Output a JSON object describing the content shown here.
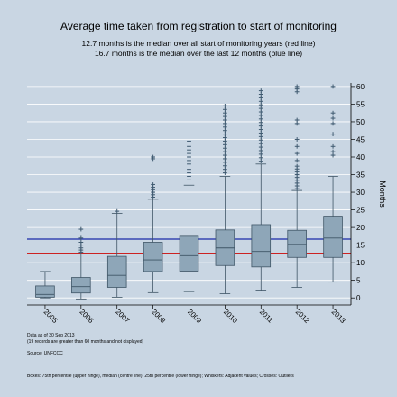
{
  "chart_data": {
    "type": "box",
    "title": "Average time taken from registration to start of monitoring",
    "subtitle_lines": [
      "12.7 months is the median over all start of monitoring years (red line)",
      "16.7 months is the median over the last 12 months (blue line)"
    ],
    "ylabel": "Months",
    "ylim": [
      -2,
      61
    ],
    "yticks": [
      0,
      5,
      10,
      15,
      20,
      25,
      30,
      35,
      40,
      45,
      50,
      55,
      60
    ],
    "ytick_labels": [
      "0",
      "5",
      "10",
      "15",
      "20",
      "25",
      "30",
      "35",
      "40",
      "45",
      "50",
      "55",
      "60"
    ],
    "ref_lines": [
      {
        "value": 12.7,
        "color": "#cc2222"
      },
      {
        "value": 16.7,
        "color": "#1a2aa8"
      }
    ],
    "categories": [
      "2005",
      "2006",
      "2007",
      "2008",
      "2009",
      "2010",
      "2011",
      "2012",
      "2013"
    ],
    "boxes": [
      {
        "whisker_low": 0,
        "q1": 0.2,
        "median": 1.0,
        "q3": 3.4,
        "whisker_high": 7.5,
        "outliers": []
      },
      {
        "whisker_low": -0.3,
        "q1": 1.4,
        "median": 3.2,
        "q3": 5.8,
        "whisker_high": 12.5,
        "outliers": [
          13.0,
          13.6,
          14.2,
          15.0,
          15.8,
          17.0,
          19.5
        ]
      },
      {
        "whisker_low": 0.2,
        "q1": 3.0,
        "median": 6.4,
        "q3": 11.8,
        "whisker_high": 24.0,
        "outliers": [
          24.6
        ]
      },
      {
        "whisker_low": 1.5,
        "q1": 7.5,
        "median": 10.8,
        "q3": 15.8,
        "whisker_high": 28.0,
        "outliers": [
          28.6,
          29.3,
          30.0,
          30.7,
          31.4,
          32.2,
          39.5,
          40.0
        ]
      },
      {
        "whisker_low": 1.8,
        "q1": 7.6,
        "median": 12.0,
        "q3": 17.5,
        "whisker_high": 32.0,
        "outliers": [
          33.5,
          34.5,
          35.5,
          36.5,
          38.0,
          39.0,
          40.0,
          41.0,
          42.0,
          43.0,
          44.5
        ]
      },
      {
        "whisker_low": 1.2,
        "q1": 9.2,
        "median": 14.2,
        "q3": 19.3,
        "whisker_high": 34.5,
        "outliers": [
          35.5,
          36.5,
          37.5,
          38.5,
          39.5,
          40.5,
          41.5,
          42.5,
          43.5,
          44.5,
          45.5,
          46.5,
          47.5,
          48.5,
          49.5,
          50.5,
          51.5,
          52.5,
          53.5,
          54.5
        ]
      },
      {
        "whisker_low": 2.2,
        "q1": 8.8,
        "median": 13.2,
        "q3": 20.8,
        "whisker_high": 38.0,
        "outliers": [
          38.8,
          39.8,
          40.8,
          41.8,
          42.8,
          43.8,
          44.8,
          45.8,
          46.8,
          47.8,
          48.8,
          49.8,
          50.8,
          51.8,
          52.8,
          53.8,
          54.8,
          55.8,
          56.8,
          57.8,
          58.8
        ]
      },
      {
        "whisker_low": 3.0,
        "q1": 11.5,
        "median": 15.2,
        "q3": 19.2,
        "whisker_high": 30.5,
        "outliers": [
          31.0,
          31.8,
          32.6,
          33.4,
          34.2,
          35.0,
          35.8,
          36.6,
          37.4,
          39.0,
          41.0,
          43.0,
          45.0,
          49.5,
          50.5,
          58.5,
          59.3,
          60.0
        ]
      },
      {
        "whisker_low": 4.5,
        "q1": 11.5,
        "median": 17.0,
        "q3": 23.2,
        "whisker_high": 34.5,
        "outliers": [
          40.5,
          41.5,
          43.0,
          46.5,
          49.5,
          51.0,
          52.5,
          60.0
        ]
      }
    ],
    "footnotes": [
      "Data as of 30 Sep 2013",
      "(19 records are greater than 60 months and not displayed)",
      "Source: UNFCCC",
      "Boxes: 75th percentile (upper hinge), median (centre line), 25th percentile (lower hinge); Whiskers: Adjacent values; Crosses: Outliers"
    ],
    "colors": {
      "background": "#c9d6e3",
      "box_fill": "#8ea6b8",
      "box_stroke": "#3f5566",
      "outlier": "#3f5a70",
      "grid": "#ffffff"
    },
    "grid": true,
    "y_axis_side": "right"
  }
}
